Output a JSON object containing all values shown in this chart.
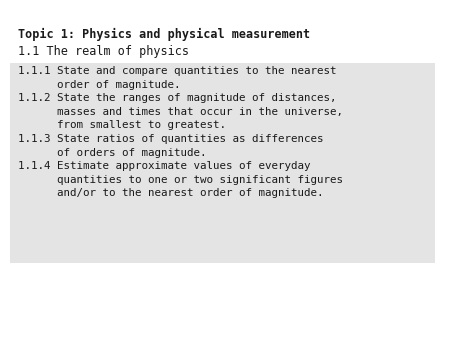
{
  "title_bold": "Topic 1: Physics and physical measurement",
  "title_sub": "1.1 The realm of physics",
  "box_text": "1.1.1 State and compare quantities to the nearest\n      order of magnitude.\n1.1.2 State the ranges of magnitude of distances,\n      masses and times that occur in the universe,\n      from smallest to greatest.\n1.1.3 State ratios of quantities as differences\n      of orders of magnitude.\n1.1.4 Estimate approximate values of everyday\n      quantities to one or two significant figures\n      and/or to the nearest order of magnitude.",
  "bg_color": "#ffffff",
  "box_color": "#e4e4e4",
  "text_color": "#1a1a1a",
  "title_fontsize": 8.5,
  "sub_fontsize": 8.5,
  "body_fontsize": 7.8
}
